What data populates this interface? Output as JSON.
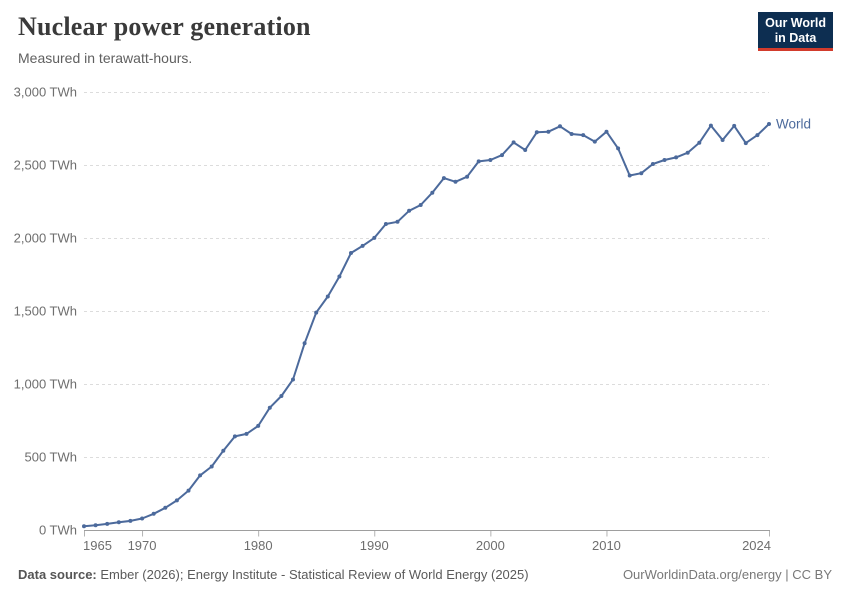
{
  "header": {
    "title": "Nuclear power generation",
    "subtitle": "Measured in terawatt-hours."
  },
  "logo": {
    "name": "our-world-in-data-logo",
    "line1": "Our World",
    "line2": "in Data",
    "bg_color": "#0d2e51",
    "bar_color": "#d23b2c"
  },
  "chart_data": {
    "type": "line",
    "title": "Nuclear power generation",
    "unit": "TWh",
    "xlim": [
      1965,
      2024
    ],
    "ylim": [
      0,
      3000
    ],
    "xticks": [
      1965,
      1970,
      1980,
      1990,
      2000,
      2010,
      2024
    ],
    "yticks": [
      0,
      500,
      1000,
      1500,
      2000,
      2500,
      3000
    ],
    "grid": "horizontal-dashed",
    "legend": "end-of-line-label",
    "point_markers": true,
    "x": [
      1965,
      1966,
      1967,
      1968,
      1969,
      1970,
      1971,
      1972,
      1973,
      1974,
      1975,
      1976,
      1977,
      1978,
      1979,
      1980,
      1981,
      1982,
      1983,
      1984,
      1985,
      1986,
      1987,
      1988,
      1989,
      1990,
      1991,
      1992,
      1993,
      1994,
      1995,
      1996,
      1997,
      1998,
      1999,
      2000,
      2001,
      2002,
      2003,
      2004,
      2005,
      2006,
      2007,
      2008,
      2009,
      2010,
      2011,
      2012,
      2013,
      2014,
      2015,
      2016,
      2017,
      2018,
      2019,
      2020,
      2021,
      2022,
      2023,
      2024
    ],
    "series": [
      {
        "name": "World",
        "color": "#4c6a9c",
        "values": [
          26,
          33,
          42,
          53,
          62,
          79,
          111,
          152,
          203,
          270,
          374,
          435,
          543,
          641,
          658,
          713,
          838,
          918,
          1031,
          1279,
          1489,
          1599,
          1736,
          1897,
          1946,
          2001,
          2096,
          2111,
          2186,
          2226,
          2310,
          2410,
          2385,
          2420,
          2525,
          2534,
          2568,
          2655,
          2603,
          2724,
          2728,
          2765,
          2712,
          2705,
          2660,
          2728,
          2614,
          2428,
          2444,
          2507,
          2534,
          2552,
          2584,
          2652,
          2770,
          2671,
          2768,
          2650,
          2705,
          2781
        ]
      }
    ]
  },
  "colors": {
    "line": "#4c6a9c",
    "grid": "#dcdcdc",
    "axis_line": "#9e9e9e",
    "tick_mark": "#b3b3b3",
    "tick_text": "#6e6e6e",
    "title_text": "#3a3a3a",
    "subtitle_text": "#606060"
  },
  "footer": {
    "source_label": "Data source:",
    "source_text": " Ember (2026); Energy Institute - Statistical Review of World Energy (2025)",
    "credit": "OurWorldinData.org/energy | CC BY"
  }
}
